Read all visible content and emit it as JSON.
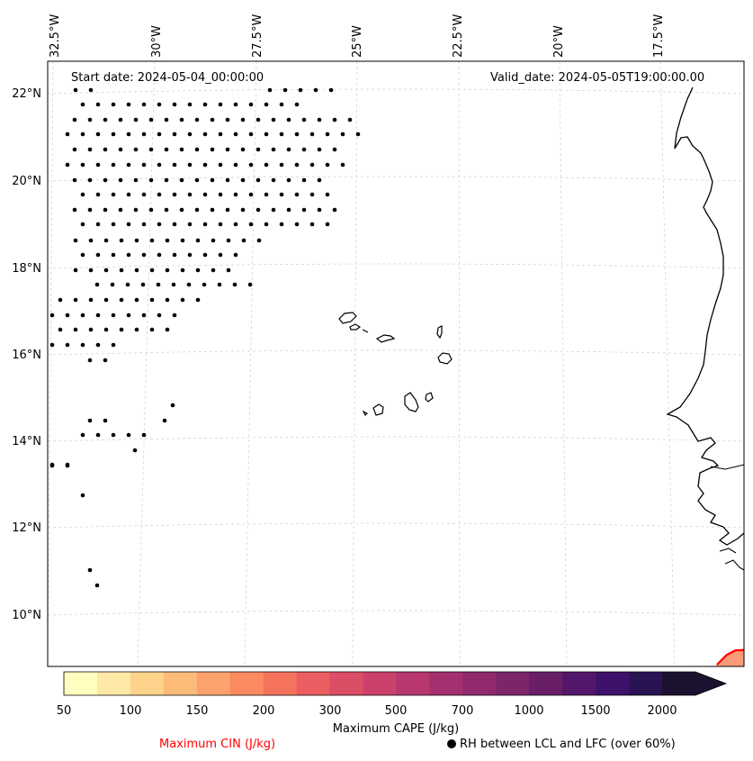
{
  "header": {
    "start_date": "Start date: 2024-05-04_00:00:00",
    "valid_date": "Valid_date: 2024-05-05T19:00:00.00"
  },
  "longitude_labels": [
    "32.5°W",
    "30°W",
    "27.5°W",
    "25°W",
    "22.5°W",
    "20°W",
    "17.5°W"
  ],
  "latitude_labels": [
    "22°N",
    "20°N",
    "18°N",
    "16°N",
    "14°N",
    "12°N",
    "10°N"
  ],
  "colorbar": {
    "title": "Maximum CAPE (J/kg)",
    "ticks": [
      "50",
      "100",
      "150",
      "200",
      "300",
      "500",
      "700",
      "1000",
      "1500",
      "2000"
    ],
    "colors": [
      "#fffdbf",
      "#fee8a5",
      "#fed38b",
      "#fdbb7a",
      "#fca36d",
      "#fb8a60",
      "#f5735d",
      "#ea5e61",
      "#dc4d66",
      "#cb416c",
      "#b8376f",
      "#a4306f",
      "#902a6d",
      "#7c2569",
      "#681f68",
      "#53166a",
      "#3e116a",
      "#291353",
      "#1c1230"
    ],
    "extend": "max"
  },
  "legend": {
    "cin_label": "Maximum CIN (J/kg)",
    "cin_color": "#ff0000",
    "rh_label": "RH between LCL and LFC (over 60%)",
    "rh_marker": "filled-dot-icon"
  },
  "colors": {
    "gridline": "#cccccc",
    "coastline": "#000000",
    "cape_patch": "#fb8a60",
    "cin_contour": "#ff0000"
  }
}
